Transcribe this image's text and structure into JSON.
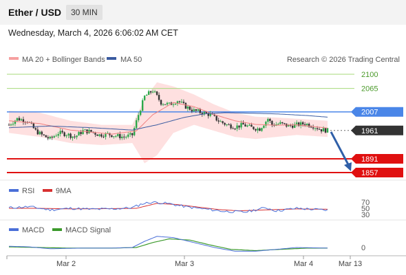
{
  "header": {
    "pair": "Ether / USD",
    "timeframe": "30 MIN"
  },
  "datetime": "Wednesday, March 4, 2026 6:06:02 AM CET",
  "legend": {
    "bb_label": "MA 20 + Bollinger Bands",
    "ma50_label": "MA 50",
    "credit": "Research © 2026 Trading Central"
  },
  "colors": {
    "up": "#2ba84a",
    "down": "#333333",
    "bands": "#fdd6d6",
    "ma20": "#f08080",
    "ma50": "#3a5ba0",
    "pivot": "#4a86e8",
    "support": "#e01010",
    "resistance": "#a6d97a",
    "rsi": "#4a6fd8",
    "rsi_ma": "#d83030",
    "macd": "#4a6fd8",
    "macd_signal": "#3c9a2c"
  },
  "levels": {
    "resistance": [
      "2100",
      "2065"
    ],
    "pivot": "2007",
    "last": "1961",
    "support": [
      "1891",
      "1857"
    ]
  },
  "rsi": {
    "label": "RSI",
    "ma_label": "9MA",
    "ticks": [
      "70",
      "50",
      "30"
    ]
  },
  "macd": {
    "label": "MACD",
    "signal_label": "MACD Signal",
    "zero": "0"
  },
  "x_ticks": [
    "Mar 2",
    "Mar 3",
    "Mar 4",
    "Mar 13"
  ],
  "chart_data": {
    "type": "candlestick",
    "title": "Ether / USD",
    "timeframe": "30 MIN",
    "y_range": [
      1845,
      2125
    ],
    "x_labels": [
      "Mar 2",
      "Mar 3",
      "Mar 4",
      "Mar 13"
    ],
    "close_anchors": [
      [
        0,
        1975
      ],
      [
        4,
        1990
      ],
      [
        9,
        1985
      ],
      [
        13,
        1960
      ],
      [
        16,
        1950
      ],
      [
        20,
        1940
      ],
      [
        24,
        1955
      ],
      [
        28,
        1952
      ],
      [
        32,
        1945
      ],
      [
        36,
        1960
      ],
      [
        40,
        1958
      ],
      [
        44,
        1950
      ],
      [
        48,
        1952
      ],
      [
        52,
        1948
      ],
      [
        56,
        1945
      ],
      [
        60,
        1950
      ],
      [
        63,
        2000
      ],
      [
        66,
        2045
      ],
      [
        70,
        2060
      ],
      [
        74,
        2030
      ],
      [
        78,
        2025
      ],
      [
        82,
        2035
      ],
      [
        86,
        2020
      ],
      [
        90,
        2010
      ],
      [
        94,
        2005
      ],
      [
        98,
        2000
      ],
      [
        102,
        1985
      ],
      [
        106,
        1975
      ],
      [
        110,
        1970
      ],
      [
        114,
        1975
      ],
      [
        118,
        1968
      ],
      [
        122,
        1965
      ],
      [
        126,
        1990
      ],
      [
        128,
        1975
      ],
      [
        132,
        1978
      ],
      [
        136,
        1972
      ],
      [
        140,
        1975
      ],
      [
        144,
        1978
      ],
      [
        148,
        1972
      ],
      [
        152,
        1963
      ],
      [
        155,
        1961
      ]
    ],
    "projection": {
      "from": 1961,
      "to": 1857
    },
    "ma20_anchors": [
      [
        0,
        1985
      ],
      [
        15,
        1978
      ],
      [
        30,
        1962
      ],
      [
        50,
        1952
      ],
      [
        62,
        1960
      ],
      [
        70,
        2000
      ],
      [
        80,
        2030
      ],
      [
        90,
        2020
      ],
      [
        100,
        2000
      ],
      [
        110,
        1985
      ],
      [
        120,
        1976
      ],
      [
        130,
        1974
      ],
      [
        140,
        1975
      ],
      [
        155,
        1967
      ]
    ],
    "ma50_anchors": [
      [
        0,
        1968
      ],
      [
        20,
        1972
      ],
      [
        40,
        1968
      ],
      [
        60,
        1962
      ],
      [
        72,
        1975
      ],
      [
        85,
        1993
      ],
      [
        95,
        2002
      ],
      [
        105,
        2005
      ],
      [
        115,
        2004
      ],
      [
        130,
        2002
      ],
      [
        145,
        1998
      ],
      [
        155,
        1994
      ]
    ],
    "band_anchors": [
      [
        0,
        2010,
        1955
      ],
      [
        15,
        2005,
        1945
      ],
      [
        30,
        1985,
        1930
      ],
      [
        45,
        1975,
        1925
      ],
      [
        60,
        1975,
        1930
      ],
      [
        66,
        2040,
        1880
      ],
      [
        72,
        2080,
        1900
      ],
      [
        80,
        2070,
        1955
      ],
      [
        90,
        2050,
        1975
      ],
      [
        100,
        2025,
        1960
      ],
      [
        110,
        2005,
        1945
      ],
      [
        120,
        1995,
        1940
      ],
      [
        130,
        1993,
        1945
      ],
      [
        140,
        1990,
        1950
      ],
      [
        155,
        1985,
        1945
      ]
    ],
    "rsi_anchors": [
      [
        0,
        52
      ],
      [
        10,
        55
      ],
      [
        20,
        45
      ],
      [
        30,
        50
      ],
      [
        40,
        47
      ],
      [
        50,
        48
      ],
      [
        60,
        52
      ],
      [
        65,
        65
      ],
      [
        70,
        70
      ],
      [
        78,
        65
      ],
      [
        86,
        55
      ],
      [
        95,
        48
      ],
      [
        105,
        40
      ],
      [
        115,
        38
      ],
      [
        125,
        52
      ],
      [
        130,
        42
      ],
      [
        140,
        50
      ],
      [
        150,
        46
      ],
      [
        155,
        44
      ]
    ],
    "rsi_ma_anchors": [
      [
        0,
        50
      ],
      [
        15,
        50
      ],
      [
        30,
        48
      ],
      [
        50,
        49
      ],
      [
        62,
        50
      ],
      [
        72,
        66
      ],
      [
        82,
        62
      ],
      [
        92,
        54
      ],
      [
        102,
        46
      ],
      [
        112,
        42
      ],
      [
        125,
        45
      ],
      [
        140,
        48
      ],
      [
        155,
        47
      ]
    ],
    "macd_anchors": [
      [
        0,
        2
      ],
      [
        10,
        1
      ],
      [
        20,
        -2
      ],
      [
        35,
        -1
      ],
      [
        50,
        -1
      ],
      [
        60,
        0
      ],
      [
        66,
        10
      ],
      [
        72,
        18
      ],
      [
        80,
        16
      ],
      [
        90,
        8
      ],
      [
        100,
        0
      ],
      [
        110,
        -6
      ],
      [
        120,
        -6
      ],
      [
        130,
        -3
      ],
      [
        140,
        0
      ],
      [
        155,
        -1
      ]
    ],
    "macd_signal_anchors": [
      [
        0,
        1
      ],
      [
        15,
        0
      ],
      [
        30,
        -1
      ],
      [
        50,
        -1
      ],
      [
        62,
        0
      ],
      [
        70,
        8
      ],
      [
        78,
        14
      ],
      [
        88,
        12
      ],
      [
        98,
        4
      ],
      [
        108,
        -3
      ],
      [
        120,
        -5
      ],
      [
        132,
        -3
      ],
      [
        145,
        -1
      ],
      [
        155,
        -1
      ]
    ]
  }
}
